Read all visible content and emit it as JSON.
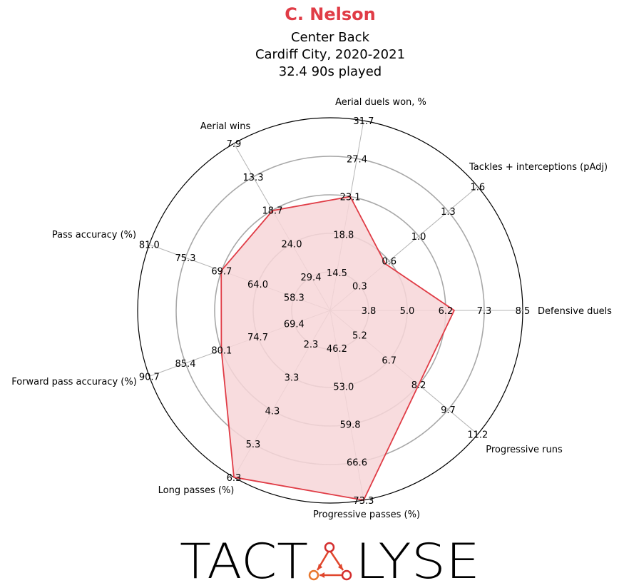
{
  "header": {
    "player": "C. Nelson",
    "position": "Center Back",
    "club_season": "Cardiff City, 2020-2021",
    "minutes": "32.4 90s played"
  },
  "colors": {
    "accent": "#e03c46",
    "fill": "#f7d6d8",
    "ring": "#a8a8a8",
    "spoke": "#b4b4b4"
  },
  "logo": {
    "text_left": "TACT",
    "text_right": "LYSE"
  },
  "chart_data": {
    "type": "radar",
    "title": "C. Nelson",
    "series": [
      {
        "values": [
          6.4,
          0.6,
          23.1,
          18.7,
          69.7,
          80.1,
          6.3,
          73.3,
          8.2
        ]
      }
    ],
    "axes": [
      {
        "label": "Defensive duels",
        "ticks": [
          "3.8",
          "5.0",
          "6.2",
          "7.3",
          "8.5"
        ],
        "min": 2.6,
        "max": 8.5
      },
      {
        "label": "Progressive runs",
        "ticks": [
          "0.3",
          "0.6",
          "1.0",
          "1.3",
          "1.6"
        ],
        "min": 0.0,
        "max": 1.6
      },
      {
        "label": "Progressive passes (%)",
        "ticks": [
          "14.5",
          "18.8",
          "23.1",
          "27.4",
          "31.7"
        ],
        "min": 10.2,
        "max": 31.7
      },
      {
        "label": "Long passes (%)",
        "ticks": [
          "29.4",
          "24.0",
          "18.7",
          "13.3",
          "7.9"
        ],
        "min": 34.8,
        "max": 7.9
      },
      {
        "label": "Forward pass accuracy (%)",
        "ticks": [
          "58.3",
          "64.0",
          "69.7",
          "75.3",
          "81.0"
        ],
        "min": 52.6,
        "max": 81.0
      },
      {
        "label": "Pass accuracy (%)",
        "ticks": [
          "69.4",
          "74.7",
          "80.1",
          "85.4",
          "90.7"
        ],
        "min": 64.1,
        "max": 90.7
      },
      {
        "label": "Aerial wins",
        "ticks": [
          "2.3",
          "3.3",
          "4.3",
          "5.3",
          "6.3"
        ],
        "min": 1.3,
        "max": 6.3
      },
      {
        "label": "Aerial duels won, %",
        "ticks": [
          "46.2",
          "53.0",
          "59.8",
          "66.6",
          "73.3"
        ],
        "min": 39.4,
        "max": 73.3
      },
      {
        "label": "Tackles + interceptions (pAdj)",
        "ticks": [
          "5.2",
          "6.7",
          "8.2",
          "9.7",
          "11.2"
        ],
        "min": 3.7,
        "max": 11.2
      }
    ],
    "axis_angles_deg": [
      0,
      -40,
      -80,
      -120,
      -160,
      160,
      120,
      80,
      40
    ],
    "grid": true,
    "legend": "none"
  }
}
